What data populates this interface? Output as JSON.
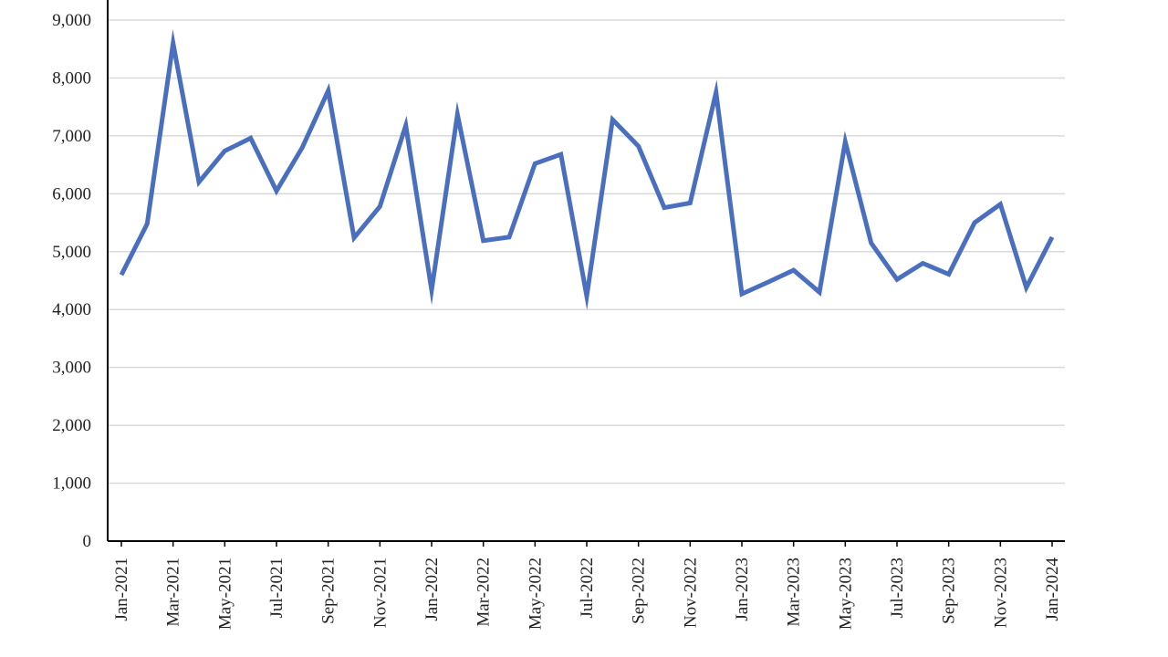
{
  "chart_data": {
    "type": "line",
    "title": "",
    "xlabel": "",
    "ylabel": "",
    "ylim": [
      0,
      9000
    ],
    "yticks": [
      0,
      1000,
      2000,
      3000,
      4000,
      5000,
      6000,
      7000,
      8000,
      9000
    ],
    "ytick_labels": [
      "0",
      "1,000",
      "2,000",
      "3,000",
      "4,000",
      "5,000",
      "6,000",
      "7,000",
      "8,000",
      "9,000"
    ],
    "grid": true,
    "legend": "none",
    "x": [
      "Jan-2021",
      "Feb-2021",
      "Mar-2021",
      "Apr-2021",
      "May-2021",
      "Jun-2021",
      "Jul-2021",
      "Aug-2021",
      "Sep-2021",
      "Oct-2021",
      "Nov-2021",
      "Dec-2021",
      "Jan-2022",
      "Feb-2022",
      "Mar-2022",
      "Apr-2022",
      "May-2022",
      "Jun-2022",
      "Jul-2022",
      "Aug-2022",
      "Sep-2022",
      "Oct-2022",
      "Nov-2022",
      "Dec-2022",
      "Jan-2023",
      "Feb-2023",
      "Mar-2023",
      "Apr-2023",
      "May-2023",
      "Jun-2023",
      "Jul-2023",
      "Aug-2023",
      "Sep-2023",
      "Oct-2023",
      "Nov-2023",
      "Dec-2023",
      "Jan-2024"
    ],
    "x_tick_labels": [
      "Jan-2021",
      "Mar-2021",
      "May-2021",
      "Jul-2021",
      "Sep-2021",
      "Nov-2021",
      "Jan-2022",
      "Mar-2022",
      "May-2022",
      "Jul-2022",
      "Sep-2022",
      "Nov-2022",
      "Jan-2023",
      "Mar-2023",
      "May-2023",
      "Jul-2023",
      "Sep-2023",
      "Nov-2023",
      "Jan-2024"
    ],
    "series": [
      {
        "color": "#4a6fbf",
        "values": [
          4600,
          5480,
          8600,
          6200,
          6740,
          6960,
          6050,
          6800,
          7780,
          5240,
          5780,
          7180,
          4340,
          7370,
          5190,
          5250,
          6520,
          6680,
          4230,
          7280,
          6820,
          5760,
          5840,
          7750,
          4270,
          4470,
          4680,
          4300,
          6900,
          5150,
          4520,
          4800,
          4610,
          5500,
          5820,
          4380,
          5250
        ]
      }
    ]
  }
}
